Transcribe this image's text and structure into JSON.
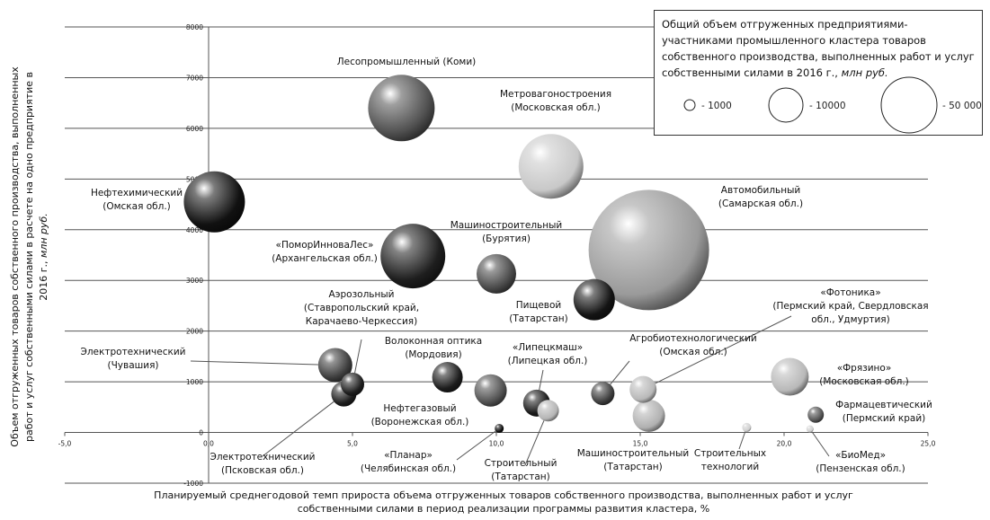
{
  "chart_data": {
    "type": "scatter",
    "subtype": "bubble",
    "title": "",
    "xlabel": "Планируемый среднегодовой темп прироста объема отгруженных товаров собственного производства, выполненных работ и услуг собственными силами в период реализации программы развития кластера, %",
    "xlabel_lines": [
      "Планируемый  среднегодовой темп прироста объема отгруженных товаров собственного  производства, выполненных  работ и услуг",
      "собственными  силами в период реализации программы  развития кластера, %"
    ],
    "ylabel_lines": [
      "Объем отгруженных товаров собственного производства, выполненных",
      "работ и услуг собственными  силами в расчете на одно предприятие в"
    ],
    "ylabel_last_line": "2016 г.,",
    "ylabel_unit": "млн руб.",
    "xlim": [
      -5,
      25
    ],
    "ylim": [
      -1000,
      8000
    ],
    "x_ticks": [
      "-5,0",
      "0,0",
      "5,0",
      "10,0",
      "15,0",
      "20,0",
      "25,0"
    ],
    "y_ticks": [
      "-1000",
      "0",
      "1000",
      "2000",
      "3000",
      "4000",
      "5000",
      "6000",
      "7000",
      "8000"
    ],
    "grid": true,
    "legend": {
      "placement": "top-right",
      "title": "Общий объем отгруженных предприятиями-участниками промышленного кластера товаров собственного производства, выполненных работ и услуг собственными силами в 2016 г.,",
      "title_unit": "млн руб.",
      "items": [
        {
          "label": "- 1000",
          "size": 1000
        },
        {
          "label": "- 10000",
          "size": 10000
        },
        {
          "label": "- 50 000",
          "size": 50000
        }
      ]
    },
    "points": [
      {
        "name": "Лесопромышленный (Коми)",
        "lines": [
          "Лесопромышленный (Коми)"
        ],
        "x": 6.7,
        "y": 6400,
        "r": 37,
        "color": "#505050"
      },
      {
        "name": "Метровагоностроения (Московская обл.)",
        "lines": [
          "Метровагоностроения",
          "(Московская обл.)"
        ],
        "x": 11.9,
        "y": 5250,
        "r": 36,
        "color": "#c8c8c8"
      },
      {
        "name": "Нефтехимический (Омская обл.)",
        "lines": [
          "Нефтехимический",
          "(Омская обл.)"
        ],
        "x": 0.2,
        "y": 4550,
        "r": 34,
        "color": "#111111"
      },
      {
        "name": "Автомобильный (Самарская обл.)",
        "lines": [
          "Автомобильный",
          "(Самарская обл.)"
        ],
        "x": 15.3,
        "y": 3600,
        "r": 67,
        "color": "#9a9a9a"
      },
      {
        "name": "«ПоморИнноваЛес» (Архангельская обл.)",
        "lines": [
          "«ПоморИнноваЛес»",
          "(Архангельская обл.)"
        ],
        "x": 7.1,
        "y": 3480,
        "r": 36,
        "color": "#1e1e1e"
      },
      {
        "name": "Машиностроительный (Бурятия)",
        "lines": [
          "Машиностроительный",
          "(Бурятия)"
        ],
        "x": 10.0,
        "y": 3130,
        "r": 22,
        "color": "#484848"
      },
      {
        "name": "Пищевой (Татарстан)",
        "lines": [
          "Пищевой",
          "(Татарстан)"
        ],
        "x": 13.4,
        "y": 2620,
        "r": 23,
        "color": "#141414"
      },
      {
        "name": "Аэрозольный (Ставропольский край, Карачаево-Черкессия)",
        "lines": [
          "Аэрозольный",
          "(Ставропольский край,",
          "Карачаево-Черкессия)"
        ],
        "x": 5.0,
        "y": 950,
        "r": 13,
        "color": "#1e1e1e"
      },
      {
        "name": "Электротехнический (Чувашия)",
        "lines": [
          "Электротехнический",
          "(Чувашия)"
        ],
        "x": 4.4,
        "y": 1330,
        "r": 19,
        "color": "#3c3c3c"
      },
      {
        "name": "Электротехнический (Псковская обл.)",
        "lines": [
          "Электротехнический",
          "(Псковская обл.)"
        ],
        "x": 4.7,
        "y": 760,
        "r": 14,
        "color": "#1e1e1e"
      },
      {
        "name": "Волоконная оптика (Мордовия)",
        "lines": [
          "Волоконная оптика",
          "(Мордовия)"
        ],
        "x": 8.3,
        "y": 1090,
        "r": 17,
        "color": "#1c1c1c"
      },
      {
        "name": "Нефтегазовый (Воронежская обл.)",
        "lines": [
          "Нефтегазовый",
          "(Воронежская обл.)"
        ],
        "x": 9.8,
        "y": 830,
        "r": 18,
        "color": "#505050"
      },
      {
        "name": "«Планар» (Челябинская обл.)",
        "lines": [
          "«Планар»",
          "(Челябинская обл.)"
        ],
        "x": 10.1,
        "y": 80,
        "r": 5,
        "color": "#0a0a0a"
      },
      {
        "name": "«Липецкмаш» (Липецкая обл.)",
        "lines": [
          "«Липецкмаш»",
          "(Липецкая обл.)"
        ],
        "x": 11.4,
        "y": 580,
        "r": 15,
        "color": "#1a1a1a"
      },
      {
        "name": "Строительный (Татарстан)",
        "lines": [
          "Строительный",
          "(Татарстан)"
        ],
        "x": 11.8,
        "y": 430,
        "r": 12,
        "color": "#b5b5b5"
      },
      {
        "name": "Агробиотехнологический (Омская обл.)",
        "lines": [
          "Агробиотехнологический",
          "(Омская обл.)"
        ],
        "x": 13.7,
        "y": 770,
        "r": 13,
        "color": "#3c3c3c"
      },
      {
        "name": "«Фотоника» (Пермский край, Свердловская обл., Удмуртия)",
        "lines": [
          "«Фотоника»",
          "(Пермский край, Свердловская",
          "обл., Удмуртия)"
        ],
        "x": 15.1,
        "y": 850,
        "r": 15,
        "color": "#b8b8b8"
      },
      {
        "name": "Машиностроительный (Татарстан)",
        "lines": [
          "Машиностроительный",
          "(Татарстан)"
        ],
        "x": 15.3,
        "y": 330,
        "r": 18,
        "color": "#b0b0b0"
      },
      {
        "name": "«Фрязино» (Московская обл.)",
        "lines": [
          "«Фрязино»",
          "(Московская обл.)"
        ],
        "x": 20.2,
        "y": 1100,
        "r": 21,
        "color": "#b8b8b8"
      },
      {
        "name": "Фармацевтический (Пермский край)",
        "lines": [
          "Фармацевтический",
          "(Пермский край)"
        ],
        "x": 21.1,
        "y": 350,
        "r": 9,
        "color": "#505050"
      },
      {
        "name": "Строительных технологий",
        "lines": [
          "Строительных",
          "технологий"
        ],
        "x": 18.7,
        "y": 100,
        "r": 5,
        "color": "#d0d0d0"
      },
      {
        "name": "«БиоМед» (Пензенская обл.)",
        "lines": [
          "«БиоМед»",
          "(Пензенская обл.)"
        ],
        "x": 20.9,
        "y": 70,
        "r": 4,
        "color": "#d0d0d0"
      }
    ]
  }
}
